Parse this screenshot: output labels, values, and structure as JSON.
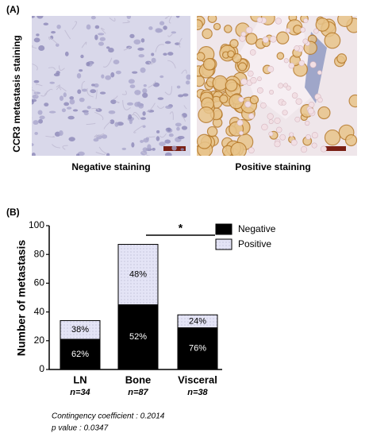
{
  "panel_a": {
    "label": "(A)",
    "ylabel": "CCR3 metastasis staining",
    "images": [
      {
        "caption": "Negative staining"
      },
      {
        "caption": "Positive staining"
      }
    ]
  },
  "chart_data": {
    "type": "stacked_bar",
    "panel_label": "(B)",
    "ylabel": "Number of metastasis",
    "categories": [
      "LN",
      "Bone",
      "Visceral"
    ],
    "sample_sizes": [
      "n=34",
      "n=87",
      "n=38"
    ],
    "series": [
      {
        "name": "Negative",
        "color": "#000000",
        "values": [
          21,
          45,
          29
        ],
        "shares": [
          {
            "value": 62,
            "label": "62%"
          },
          {
            "value": 52,
            "label": "52%"
          },
          {
            "value": 76,
            "label": "76%"
          }
        ]
      },
      {
        "name": "Positive",
        "color": "#e4e4f6",
        "values": [
          13,
          42,
          9
        ],
        "shares": [
          {
            "value": 38,
            "label": "38%"
          },
          {
            "value": 48,
            "label": "48%"
          },
          {
            "value": 24,
            "label": "24%"
          }
        ]
      }
    ],
    "ylim": [
      0,
      100
    ],
    "yticks": [
      0,
      20,
      40,
      60,
      80,
      100
    ],
    "grid": false,
    "legend": "top-right",
    "significance": {
      "label": "*",
      "between": [
        "Bone",
        "Visceral"
      ]
    },
    "annotations": [
      "Contingency coefficient : 0.2014",
      "p value : 0.0347"
    ]
  }
}
